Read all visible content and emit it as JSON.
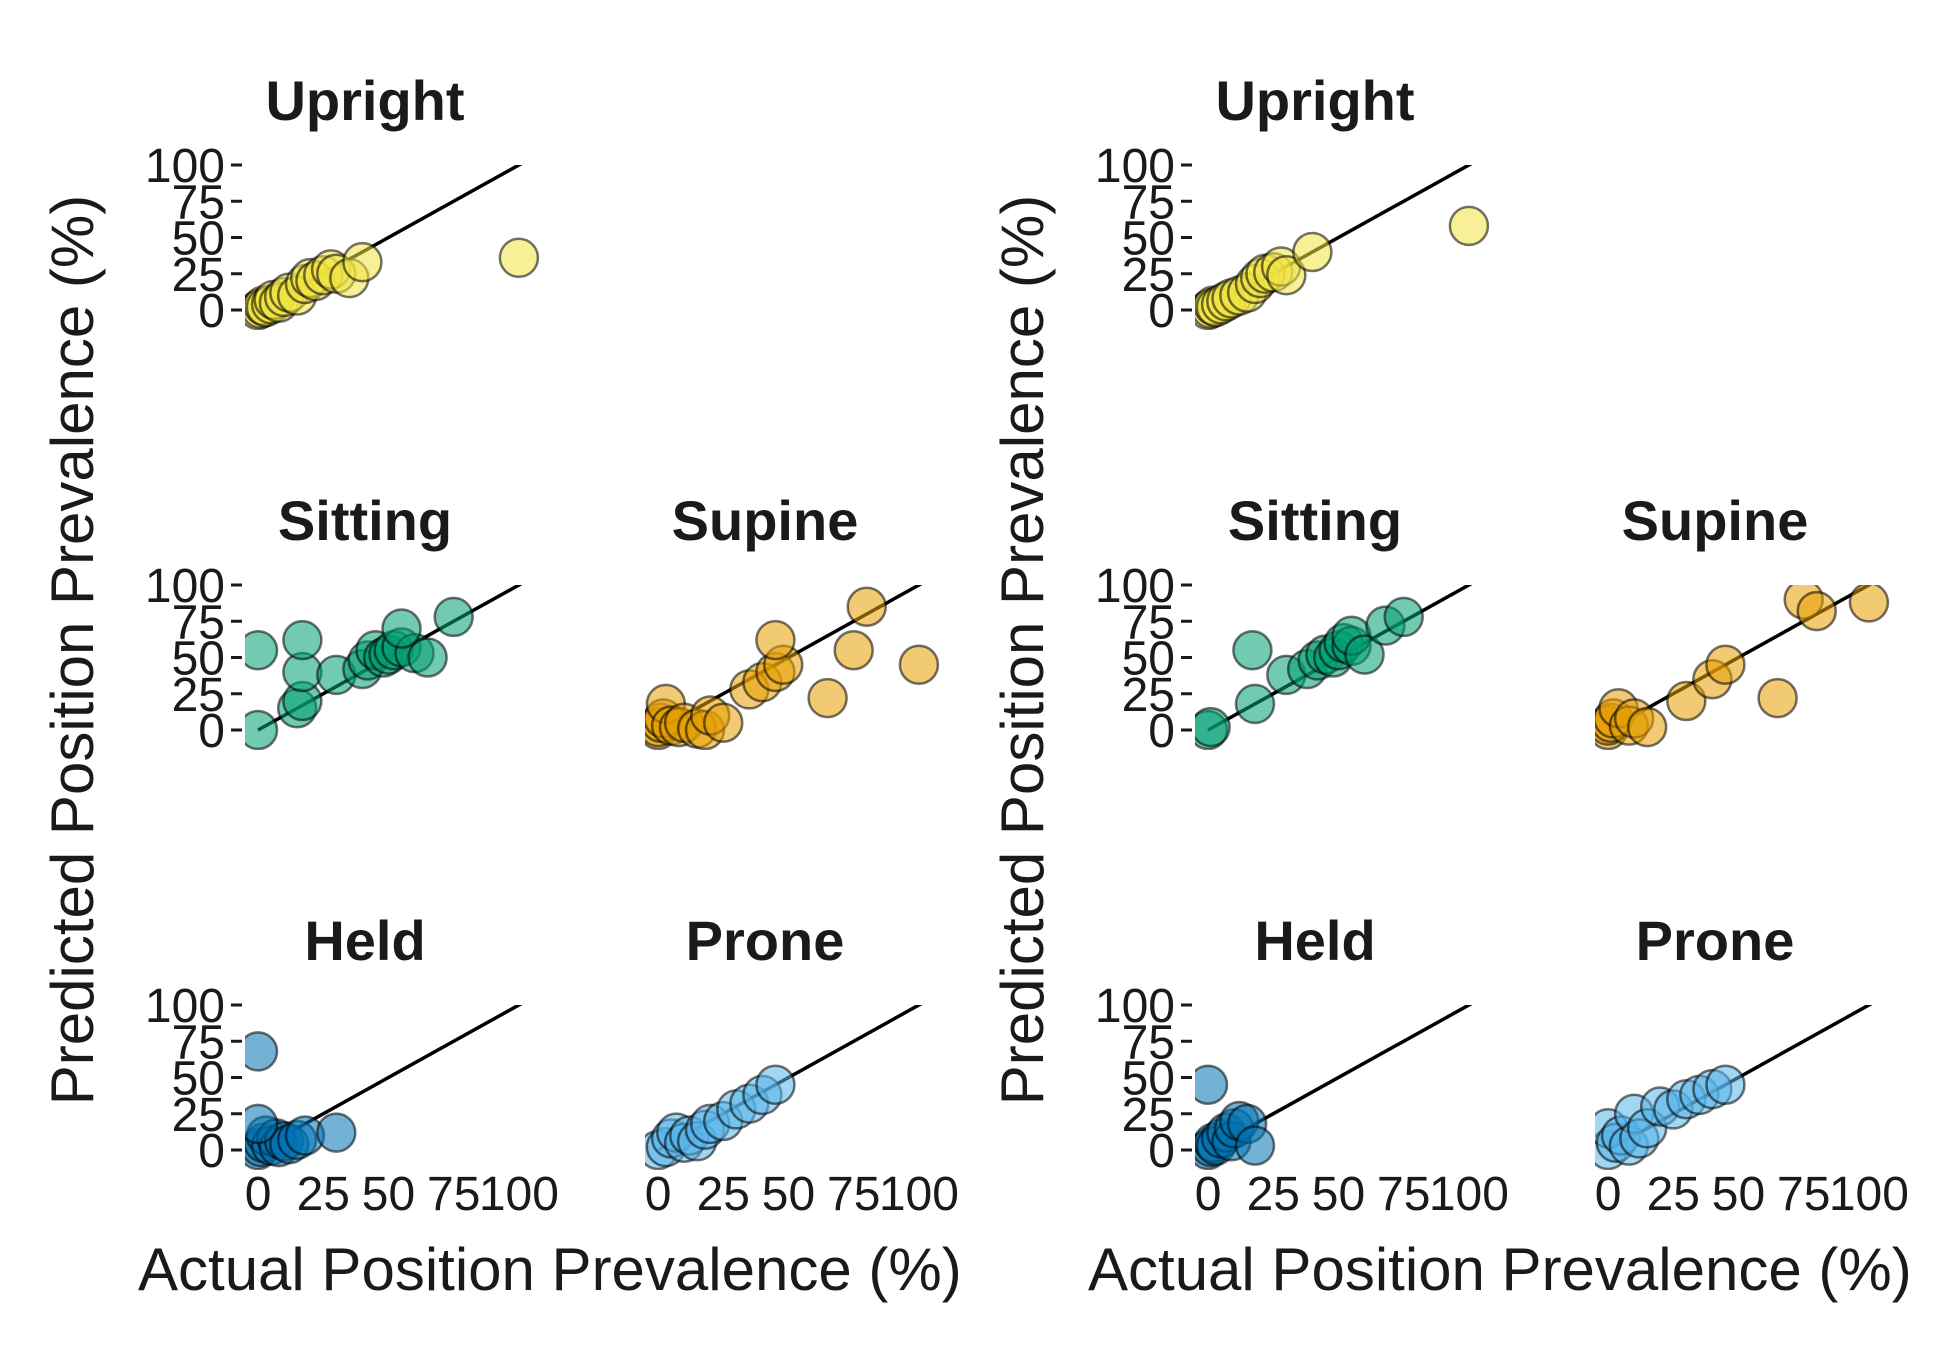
{
  "chart_data": [
    {
      "type": "scatter",
      "xlabel": "Actual Position Prevalence (%)",
      "ylabel": "Predicted Position Prevalence (%)",
      "xlim": [
        -5,
        110
      ],
      "ylim": [
        0,
        100
      ],
      "x_ticks": [
        "0",
        "25",
        "50",
        "75",
        "100"
      ],
      "y_ticks": [
        "0",
        "25",
        "50",
        "75",
        "100"
      ],
      "reference_line": "y = x",
      "panels": [
        {
          "title": "Upright",
          "color": "#f0e442",
          "points": [
            [
              0,
              0
            ],
            [
              1,
              1
            ],
            [
              2,
              3
            ],
            [
              3,
              2
            ],
            [
              5,
              4
            ],
            [
              6,
              7
            ],
            [
              8,
              5
            ],
            [
              10,
              9
            ],
            [
              12,
              12
            ],
            [
              15,
              10
            ],
            [
              18,
              18
            ],
            [
              20,
              22
            ],
            [
              22,
              20
            ],
            [
              25,
              24
            ],
            [
              28,
              28
            ],
            [
              30,
              25
            ],
            [
              35,
              22
            ],
            [
              40,
              33
            ],
            [
              100,
              36
            ]
          ]
        },
        {
          "title": "Sitting",
          "color": "#009e73",
          "points": [
            [
              0,
              0
            ],
            [
              0,
              55
            ],
            [
              15,
              15
            ],
            [
              17,
              20
            ],
            [
              17,
              40
            ],
            [
              17,
              62
            ],
            [
              30,
              38
            ],
            [
              40,
              42
            ],
            [
              42,
              48
            ],
            [
              45,
              55
            ],
            [
              48,
              50
            ],
            [
              50,
              52
            ],
            [
              52,
              55
            ],
            [
              55,
              57
            ],
            [
              60,
              53
            ],
            [
              55,
              70
            ],
            [
              65,
              50
            ],
            [
              75,
              78
            ]
          ]
        },
        {
          "title": "Supine",
          "color": "#e69f00",
          "points": [
            [
              0,
              0
            ],
            [
              0,
              2
            ],
            [
              1,
              5
            ],
            [
              2,
              8
            ],
            [
              3,
              18
            ],
            [
              5,
              3
            ],
            [
              8,
              2
            ],
            [
              10,
              5
            ],
            [
              15,
              1
            ],
            [
              18,
              0
            ],
            [
              20,
              10
            ],
            [
              25,
              5
            ],
            [
              35,
              28
            ],
            [
              40,
              33
            ],
            [
              45,
              40
            ],
            [
              48,
              45
            ],
            [
              45,
              62
            ],
            [
              65,
              22
            ],
            [
              75,
              55
            ],
            [
              80,
              85
            ],
            [
              100,
              45
            ]
          ]
        },
        {
          "title": "Held",
          "color": "#0072b2",
          "points": [
            [
              0,
              0
            ],
            [
              1,
              2
            ],
            [
              2,
              5
            ],
            [
              3,
              10
            ],
            [
              5,
              3
            ],
            [
              7,
              8
            ],
            [
              8,
              2
            ],
            [
              10,
              6
            ],
            [
              12,
              4
            ],
            [
              15,
              7
            ],
            [
              18,
              10
            ],
            [
              0,
              68
            ],
            [
              0,
              18
            ],
            [
              30,
              12
            ]
          ]
        },
        {
          "title": "Prone",
          "color": "#56b4e9",
          "points": [
            [
              0,
              0
            ],
            [
              3,
              2
            ],
            [
              5,
              8
            ],
            [
              7,
              12
            ],
            [
              10,
              5
            ],
            [
              12,
              10
            ],
            [
              15,
              6
            ],
            [
              18,
              14
            ],
            [
              20,
              18
            ],
            [
              25,
              20
            ],
            [
              30,
              28
            ],
            [
              35,
              32
            ],
            [
              40,
              38
            ],
            [
              45,
              45
            ]
          ]
        }
      ]
    },
    {
      "type": "scatter",
      "xlabel": "Actual Position Prevalence (%)",
      "ylabel": "Predicted Position Prevalence (%)",
      "xlim": [
        -5,
        110
      ],
      "ylim": [
        0,
        100
      ],
      "x_ticks": [
        "0",
        "25",
        "50",
        "75",
        "100"
      ],
      "y_ticks": [
        "0",
        "25",
        "50",
        "75",
        "100"
      ],
      "reference_line": "y = x",
      "panels": [
        {
          "title": "Upright",
          "color": "#f0e442",
          "points": [
            [
              0,
              0
            ],
            [
              1,
              1
            ],
            [
              2,
              3
            ],
            [
              3,
              2
            ],
            [
              5,
              4
            ],
            [
              7,
              6
            ],
            [
              9,
              8
            ],
            [
              12,
              10
            ],
            [
              15,
              12
            ],
            [
              18,
              18
            ],
            [
              20,
              22
            ],
            [
              22,
              25
            ],
            [
              25,
              26
            ],
            [
              28,
              30
            ],
            [
              30,
              24
            ],
            [
              40,
              40
            ],
            [
              100,
              58
            ]
          ]
        },
        {
          "title": "Sitting",
          "color": "#009e73",
          "points": [
            [
              0,
              0
            ],
            [
              1,
              2
            ],
            [
              17,
              55
            ],
            [
              18,
              18
            ],
            [
              30,
              38
            ],
            [
              38,
              42
            ],
            [
              42,
              48
            ],
            [
              45,
              52
            ],
            [
              48,
              50
            ],
            [
              50,
              55
            ],
            [
              52,
              60
            ],
            [
              55,
              58
            ],
            [
              55,
              65
            ],
            [
              60,
              52
            ],
            [
              68,
              72
            ],
            [
              75,
              78
            ]
          ]
        },
        {
          "title": "Supine",
          "color": "#e69f00",
          "points": [
            [
              0,
              0
            ],
            [
              0,
              3
            ],
            [
              1,
              5
            ],
            [
              2,
              8
            ],
            [
              4,
              15
            ],
            [
              8,
              3
            ],
            [
              10,
              8
            ],
            [
              15,
              2
            ],
            [
              30,
              20
            ],
            [
              40,
              35
            ],
            [
              45,
              45
            ],
            [
              65,
              22
            ],
            [
              75,
              90
            ],
            [
              80,
              82
            ],
            [
              100,
              88
            ]
          ]
        },
        {
          "title": "Held",
          "color": "#0072b2",
          "points": [
            [
              0,
              0
            ],
            [
              1,
              2
            ],
            [
              2,
              5
            ],
            [
              3,
              3
            ],
            [
              5,
              8
            ],
            [
              7,
              12
            ],
            [
              9,
              6
            ],
            [
              10,
              15
            ],
            [
              12,
              20
            ],
            [
              15,
              18
            ],
            [
              0,
              45
            ],
            [
              18,
              3
            ]
          ]
        },
        {
          "title": "Prone",
          "color": "#56b4e9",
          "points": [
            [
              0,
              0
            ],
            [
              0,
              15
            ],
            [
              3,
              5
            ],
            [
              5,
              10
            ],
            [
              8,
              3
            ],
            [
              10,
              25
            ],
            [
              12,
              8
            ],
            [
              15,
              15
            ],
            [
              20,
              30
            ],
            [
              25,
              28
            ],
            [
              30,
              35
            ],
            [
              35,
              38
            ],
            [
              40,
              42
            ],
            [
              45,
              45
            ]
          ]
        }
      ]
    }
  ]
}
